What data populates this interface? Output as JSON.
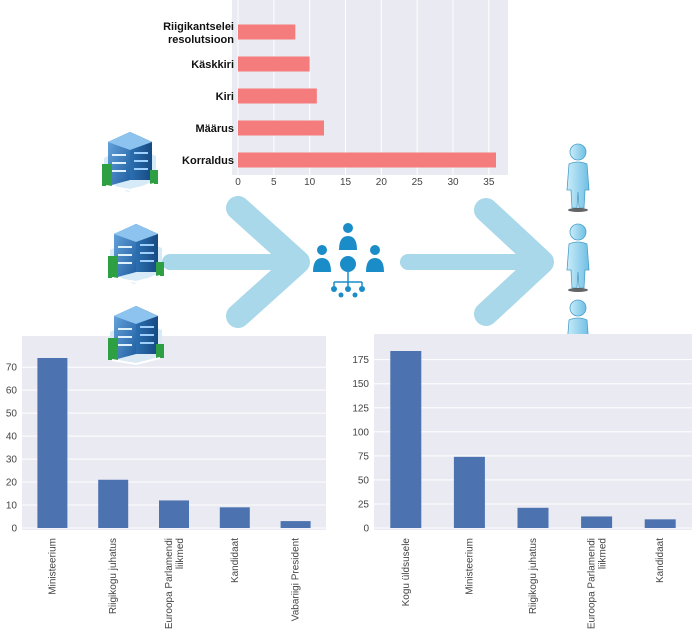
{
  "colors": {
    "plot_background": "#eaeaf2",
    "grid": "#ffffff",
    "bar_red": "#f47c7c",
    "bar_blue": "#4c72b0",
    "arrow": "#a8d8ea",
    "people_icon": "#1a8dc8",
    "building_blue": "#2f6fb3",
    "building_green": "#2ea043",
    "person_body": "#9fd6ef"
  },
  "icons": {
    "building": "office-building-icon",
    "network": "people-network-icon",
    "person": "person-icon",
    "arrow": "chevron-right-arrow-icon"
  },
  "chart_data": [
    {
      "type": "bar",
      "orientation": "horizontal",
      "categories": [
        "Korraldus",
        "Määrus",
        "Kiri",
        "Käskkiri",
        "Riigikantselei resolutsioon"
      ],
      "category_label_lines": [
        [
          "Korraldus"
        ],
        [
          "Määrus"
        ],
        [
          "Kiri"
        ],
        [
          "Käskkiri"
        ],
        [
          "Riigikantselei",
          "resolutsioon"
        ]
      ],
      "values": [
        36,
        12,
        11,
        10,
        8
      ],
      "xlim": [
        0,
        36
      ],
      "xticks": [
        0,
        5,
        10,
        15,
        20,
        25,
        30,
        35
      ],
      "grid": true,
      "color": "#f47c7c"
    },
    {
      "type": "bar",
      "orientation": "vertical",
      "categories": [
        "Ministeerium",
        "Riigikogu juhatus",
        "Euroopa Parlamendi liikmed",
        "Kandidaat",
        "Vabariigi President"
      ],
      "category_label_lines": [
        [
          "Ministeerium"
        ],
        [
          "Riigikogu juhatus"
        ],
        [
          "Euroopa Parlamendi",
          "liikmed"
        ],
        [
          "Kandidaat"
        ],
        [
          "Vabariigi President"
        ]
      ],
      "values": [
        74,
        21,
        12,
        9,
        3
      ],
      "ylim": [
        0,
        74
      ],
      "yticks": [
        0,
        10,
        20,
        30,
        40,
        50,
        60,
        70
      ],
      "grid": true,
      "color": "#4c72b0"
    },
    {
      "type": "bar",
      "orientation": "vertical",
      "categories": [
        "Kogu üldsusele",
        "Ministeerium",
        "Riigikogu juhatus",
        "Euroopa Parlamendi liikmed",
        "Kandidaat"
      ],
      "category_label_lines": [
        [
          "Kogu üldsusele"
        ],
        [
          "Ministeerium"
        ],
        [
          "Riigikogu juhatus"
        ],
        [
          "Euroopa Parlamendi",
          "liikmed"
        ],
        [
          "Kandidaat"
        ]
      ],
      "values": [
        184,
        74,
        21,
        12,
        9
      ],
      "ylim": [
        0,
        184
      ],
      "yticks": [
        0,
        25,
        50,
        75,
        100,
        125,
        150,
        175
      ],
      "grid": true,
      "color": "#4c72b0"
    }
  ]
}
